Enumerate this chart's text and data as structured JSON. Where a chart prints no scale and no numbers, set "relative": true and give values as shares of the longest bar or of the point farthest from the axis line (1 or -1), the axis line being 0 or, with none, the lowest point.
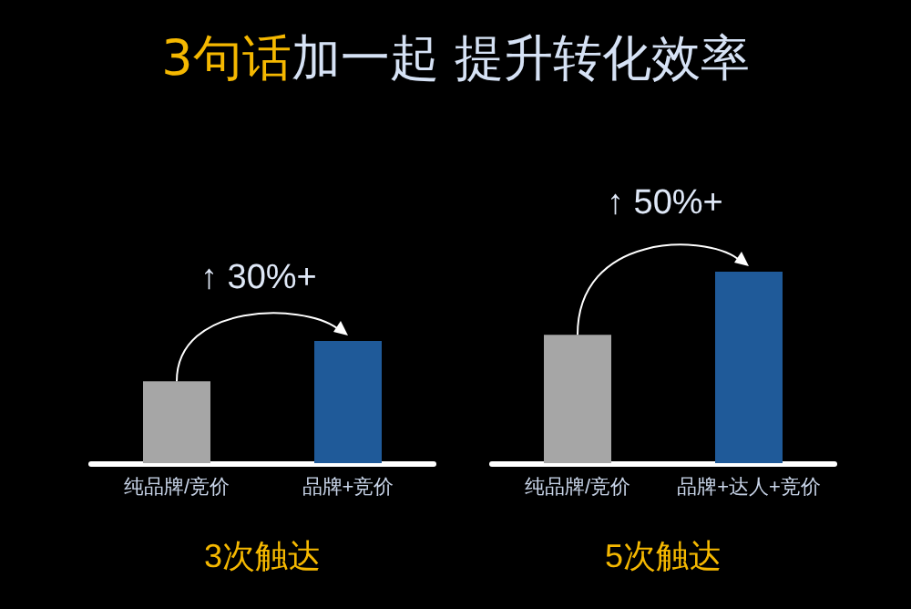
{
  "chart_data": [
    {
      "type": "bar",
      "title": "3句话加一起 提升转化效率",
      "categories": [
        "纯品牌/竞价",
        "品牌+竞价"
      ],
      "values": [
        0.67,
        1
      ],
      "colors": [
        "#a6a6a6",
        "#1f5a99"
      ],
      "relative": true,
      "xlabel": "3次触达",
      "annotations": [
        "↑ 30%+"
      ]
    },
    {
      "type": "bar",
      "categories": [
        "纯品牌/竞价",
        "品牌+达人+竞价"
      ],
      "values": [
        0.67,
        1
      ],
      "colors": [
        "#a6a6a6",
        "#1f5a99"
      ],
      "relative": true,
      "xlabel": "5次触达",
      "annotations": [
        "↑ 50%+"
      ]
    }
  ]
}
